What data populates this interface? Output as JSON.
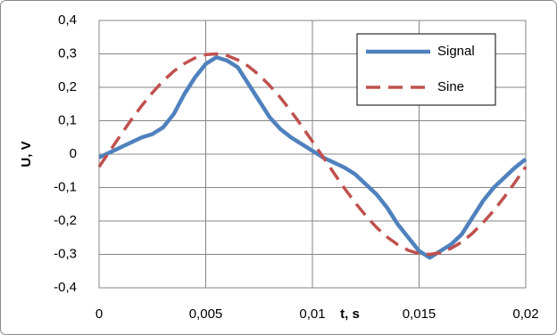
{
  "chart_data": {
    "type": "line",
    "x_label": "t, s",
    "y_label": "U, V",
    "x": [
      0,
      0.0005,
      0.001,
      0.0015,
      0.002,
      0.0025,
      0.003,
      0.0035,
      0.004,
      0.0045,
      0.005,
      0.0055,
      0.006,
      0.0065,
      0.007,
      0.0075,
      0.008,
      0.0085,
      0.009,
      0.0095,
      0.01,
      0.0105,
      0.011,
      0.0115,
      0.012,
      0.0125,
      0.013,
      0.0135,
      0.014,
      0.0145,
      0.015,
      0.0155,
      0.016,
      0.0165,
      0.017,
      0.0175,
      0.018,
      0.0185,
      0.019,
      0.0195,
      0.02
    ],
    "series": [
      {
        "name": "Signal",
        "color": "#4f81bd",
        "dashed": false,
        "values": [
          -0.01,
          0.005,
          0.02,
          0.035,
          0.05,
          0.06,
          0.08,
          0.12,
          0.18,
          0.23,
          0.27,
          0.29,
          0.28,
          0.26,
          0.21,
          0.16,
          0.11,
          0.075,
          0.05,
          0.03,
          0.01,
          -0.01,
          -0.025,
          -0.04,
          -0.06,
          -0.09,
          -0.12,
          -0.16,
          -0.21,
          -0.25,
          -0.29,
          -0.31,
          -0.29,
          -0.27,
          -0.24,
          -0.19,
          -0.14,
          -0.1,
          -0.07,
          -0.04,
          -0.015
        ]
      },
      {
        "name": "Sine",
        "color": "#c0504d",
        "dashed": true,
        "values": [
          -0.038,
          0.009,
          0.056,
          0.102,
          0.145,
          0.184,
          0.219,
          0.248,
          0.271,
          0.288,
          0.298,
          0.3,
          0.295,
          0.282,
          0.263,
          0.237,
          0.205,
          0.169,
          0.128,
          0.084,
          0.038,
          -0.009,
          -0.056,
          -0.102,
          -0.145,
          -0.184,
          -0.219,
          -0.248,
          -0.271,
          -0.288,
          -0.298,
          -0.3,
          -0.295,
          -0.282,
          -0.263,
          -0.237,
          -0.205,
          -0.169,
          -0.128,
          -0.084,
          -0.038
        ]
      }
    ],
    "xlim": [
      0,
      0.02
    ],
    "xticks": [
      0,
      {
        "value": 0.005,
        "label": "0,005"
      },
      {
        "value": 0.01,
        "label": "0,01"
      },
      {
        "value": 0.015,
        "label": "0,015"
      },
      {
        "value": 0.02,
        "label": "0,02"
      }
    ],
    "ylim": [
      -0.4,
      0.4
    ],
    "yticks": [
      {
        "value": -0.4,
        "label": "-0,4"
      },
      {
        "value": -0.3,
        "label": "-0,3"
      },
      {
        "value": -0.2,
        "label": "-0,2"
      },
      {
        "value": -0.1,
        "label": "-0,1"
      },
      0,
      {
        "value": 0.1,
        "label": "0,1"
      },
      {
        "value": 0.2,
        "label": "0,2"
      },
      {
        "value": 0.3,
        "label": "0,3"
      },
      {
        "value": 0.4,
        "label": "0,4"
      }
    ],
    "grid": true,
    "legend": "top-right"
  }
}
